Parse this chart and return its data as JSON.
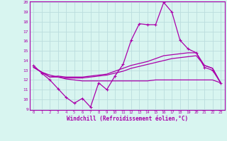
{
  "xlabel": "Windchill (Refroidissement éolien,°C)",
  "bg_color": "#d8f5f0",
  "line_color": "#aa00aa",
  "grid_color": "#bbdddd",
  "x": [
    0,
    1,
    2,
    3,
    4,
    5,
    6,
    7,
    8,
    9,
    10,
    11,
    12,
    13,
    14,
    15,
    16,
    17,
    18,
    19,
    20,
    21,
    22,
    23
  ],
  "y_main": [
    13.5,
    12.7,
    12.0,
    11.1,
    10.2,
    9.6,
    10.1,
    9.2,
    11.7,
    11.0,
    12.4,
    13.6,
    16.1,
    17.8,
    17.7,
    17.7,
    20.0,
    19.0,
    16.1,
    15.2,
    14.8,
    13.3,
    13.0,
    11.7
  ],
  "y_line1": [
    13.3,
    12.8,
    12.5,
    12.3,
    12.1,
    12.0,
    11.9,
    11.9,
    11.9,
    11.9,
    11.9,
    11.9,
    11.9,
    11.9,
    11.9,
    12.0,
    12.0,
    12.0,
    12.0,
    12.0,
    12.0,
    12.0,
    12.0,
    11.7
  ],
  "y_line2": [
    13.3,
    12.8,
    12.3,
    12.3,
    12.2,
    12.2,
    12.2,
    12.3,
    12.4,
    12.5,
    12.7,
    12.9,
    13.2,
    13.4,
    13.6,
    13.8,
    14.0,
    14.2,
    14.3,
    14.4,
    14.5,
    13.5,
    13.2,
    11.7
  ],
  "y_line3": [
    13.3,
    12.8,
    12.3,
    12.4,
    12.3,
    12.3,
    12.3,
    12.4,
    12.5,
    12.6,
    12.9,
    13.2,
    13.5,
    13.7,
    13.9,
    14.2,
    14.5,
    14.6,
    14.7,
    14.8,
    14.8,
    13.5,
    13.2,
    11.7
  ],
  "ylim": [
    9,
    20
  ],
  "xlim": [
    -0.5,
    23.5
  ],
  "yticks": [
    9,
    10,
    11,
    12,
    13,
    14,
    15,
    16,
    17,
    18,
    19,
    20
  ],
  "xticks": [
    0,
    1,
    2,
    3,
    4,
    5,
    6,
    7,
    8,
    9,
    10,
    11,
    12,
    13,
    14,
    15,
    16,
    17,
    18,
    19,
    20,
    21,
    22,
    23
  ]
}
